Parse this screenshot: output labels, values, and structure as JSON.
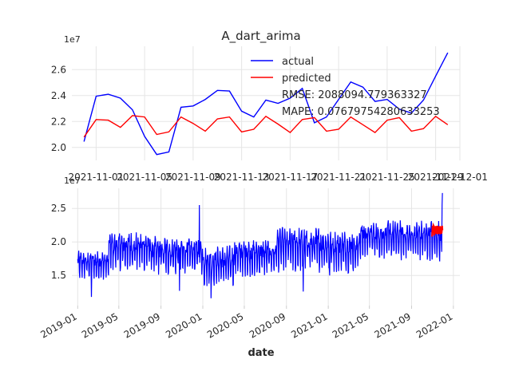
{
  "figure": {
    "background": "#ffffff"
  },
  "chart_data": [
    {
      "type": "line",
      "title": "A_dart_arima",
      "xlabel": "",
      "ylabel": "",
      "y_offset_label": "1e7",
      "xlim": [
        "2021-10-30",
        "2021-12-01"
      ],
      "ylim": [
        19000000.0,
        27800000.0
      ],
      "grid": true,
      "legend_position": "top-right",
      "x_ticks": [
        "2021-11-01",
        "2021-11-05",
        "2021-11-09",
        "2021-11-13",
        "2021-11-17",
        "2021-11-21",
        "2021-11-25",
        "2021-11-29",
        "2021-12-01"
      ],
      "y_ticks": [
        {
          "value": 20000000.0,
          "label": "2.0"
        },
        {
          "value": 22000000.0,
          "label": "2.2"
        },
        {
          "value": 24000000.0,
          "label": "2.4"
        },
        {
          "value": 26000000.0,
          "label": "2.6"
        }
      ],
      "series": [
        {
          "name": "actual",
          "color": "#0000ff",
          "x": [
            "2021-10-31",
            "2021-11-01",
            "2021-11-02",
            "2021-11-03",
            "2021-11-04",
            "2021-11-05",
            "2021-11-06",
            "2021-11-07",
            "2021-11-08",
            "2021-11-09",
            "2021-11-10",
            "2021-11-11",
            "2021-11-12",
            "2021-11-13",
            "2021-11-14",
            "2021-11-15",
            "2021-11-16",
            "2021-11-17",
            "2021-11-18",
            "2021-11-19",
            "2021-11-20",
            "2021-11-21",
            "2021-11-22",
            "2021-11-23",
            "2021-11-24",
            "2021-11-25",
            "2021-11-26",
            "2021-11-27",
            "2021-11-28",
            "2021-11-29",
            "2021-11-30"
          ],
          "values": [
            20450000,
            23950000,
            24100000,
            23800000,
            22900000,
            20850000,
            19450000,
            19650000,
            23100000,
            23200000,
            23700000,
            24400000,
            24350000,
            22800000,
            22350000,
            23650000,
            23400000,
            23800000,
            24550000,
            21900000,
            22350000,
            23700000,
            25050000,
            24650000,
            23550000,
            23700000,
            22950000,
            22650000,
            23650000,
            25500000,
            27300000
          ]
        },
        {
          "name": "predicted",
          "color": "#ff0000",
          "x": [
            "2021-10-31",
            "2021-11-01",
            "2021-11-02",
            "2021-11-03",
            "2021-11-04",
            "2021-11-05",
            "2021-11-06",
            "2021-11-07",
            "2021-11-08",
            "2021-11-09",
            "2021-11-10",
            "2021-11-11",
            "2021-11-12",
            "2021-11-13",
            "2021-11-14",
            "2021-11-15",
            "2021-11-16",
            "2021-11-17",
            "2021-11-18",
            "2021-11-19",
            "2021-11-20",
            "2021-11-21",
            "2021-11-22",
            "2021-11-23",
            "2021-11-24",
            "2021-11-25",
            "2021-11-26",
            "2021-11-27",
            "2021-11-28",
            "2021-11-29",
            "2021-11-30"
          ],
          "values": [
            20800000,
            22150000,
            22100000,
            21550000,
            22450000,
            22350000,
            21000000,
            21200000,
            22350000,
            21850000,
            21250000,
            22200000,
            22350000,
            21200000,
            21400000,
            22400000,
            21800000,
            21150000,
            22150000,
            22300000,
            21250000,
            21400000,
            22350000,
            21750000,
            21150000,
            22100000,
            22300000,
            21250000,
            21450000,
            22400000,
            21750000
          ]
        }
      ],
      "text_annotations": [
        "RMSE: 2088094.779363327",
        "MAPE: 0.07679754280633253"
      ]
    },
    {
      "type": "line",
      "title": "",
      "xlabel": "date",
      "ylabel": "",
      "y_offset_label": "1e7",
      "xlim": [
        "2018-12-15",
        "2022-01-20"
      ],
      "ylim": [
        10500000.0,
        28000000.0
      ],
      "grid": true,
      "x_ticks": [
        "2019-01",
        "2019-05",
        "2019-09",
        "2020-01",
        "2020-05",
        "2020-09",
        "2021-01",
        "2021-05",
        "2021-09",
        "2022-01"
      ],
      "y_ticks": [
        {
          "value": 15000000.0,
          "label": "1.5"
        },
        {
          "value": 20000000.0,
          "label": "2.0"
        },
        {
          "value": 25000000.0,
          "label": "2.5"
        }
      ],
      "series": [
        {
          "name": "actual",
          "color": "#0000ff",
          "note": "daily series 2019-01-01 to 2021-11-30",
          "start": "2019-01-01",
          "end": "2021-11-30",
          "segments": [
            {
              "end": "2019-04-01",
              "base": 16800000,
              "amp": 1900000
            },
            {
              "end": "2019-08-01",
              "base": 19000000,
              "amp": 2600000
            },
            {
              "end": "2019-12-31",
              "base": 18300000,
              "amp": 2600000
            },
            {
              "end": "2020-04-01",
              "base": 16800000,
              "amp": 2700000
            },
            {
              "end": "2020-08-01",
              "base": 18000000,
              "amp": 2500000
            },
            {
              "end": "2020-12-31",
              "base": 19300000,
              "amp": 3000000
            },
            {
              "end": "2021-04-01",
              "base": 19000000,
              "amp": 2800000
            },
            {
              "end": "2021-08-01",
              "base": 20700000,
              "amp": 2600000
            },
            {
              "end": "2021-11-30",
              "base": 20600000,
              "amp": 2700000
            }
          ],
          "spikes": [
            {
              "date": "2019-02-10",
              "value": 11800000
            },
            {
              "date": "2019-10-25",
              "value": 12700000
            },
            {
              "date": "2019-12-22",
              "value": 25500000
            },
            {
              "date": "2020-01-25",
              "value": 11600000
            },
            {
              "date": "2020-10-20",
              "value": 12600000
            },
            {
              "date": "2021-01-05",
              "value": 15000000
            },
            {
              "date": "2021-11-29",
              "value": 25500000
            },
            {
              "date": "2021-11-30",
              "value": 27300000
            }
          ]
        },
        {
          "name": "predicted",
          "color": "#ff0000",
          "start": "2021-10-31",
          "end": "2021-11-30",
          "values": [
            20800000,
            22150000,
            22100000,
            21550000,
            22450000,
            22350000,
            21000000,
            21200000,
            22350000,
            21850000,
            21250000,
            22200000,
            22350000,
            21200000,
            21400000,
            22400000,
            21800000,
            21150000,
            22150000,
            22300000,
            21250000,
            21400000,
            22350000,
            21750000,
            21150000,
            22100000,
            22300000,
            21250000,
            21450000,
            22400000,
            21750000
          ]
        }
      ]
    }
  ]
}
